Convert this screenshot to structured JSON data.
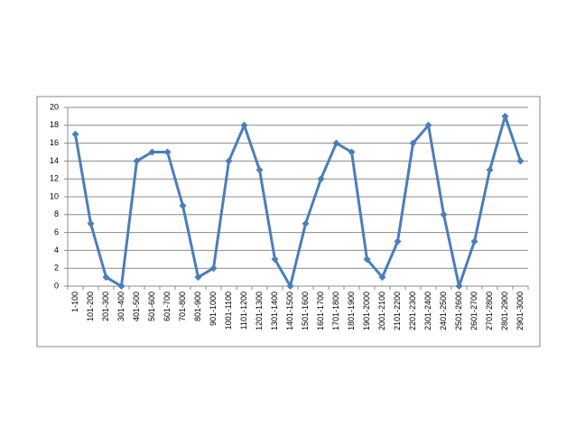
{
  "chart_data": {
    "type": "line",
    "categories": [
      "1-100",
      "101-200",
      "201-300",
      "301-400",
      "401-500",
      "501-600",
      "601-700",
      "701-800",
      "801-900",
      "901-1000",
      "1001-1100",
      "1101-1200",
      "1201-1300",
      "1301-1400",
      "1401-1500",
      "1501-1600",
      "1601-1700",
      "1701-1800",
      "1801-1900",
      "1901-2000",
      "2001-2100",
      "2101-2200",
      "2201-2300",
      "2301-2400",
      "2401-2500",
      "2501-2600",
      "2601-2700",
      "2701-2800",
      "2801-2900",
      "2901-3000"
    ],
    "values": [
      17,
      7,
      1,
      0,
      14,
      15,
      15,
      9,
      1,
      2,
      14,
      18,
      13,
      3,
      0,
      7,
      12,
      16,
      15,
      3,
      1,
      5,
      16,
      18,
      8,
      0,
      5,
      13,
      19,
      14
    ],
    "color": "#4a7ebb",
    "ylim": [
      0,
      20
    ],
    "yticks": [
      0,
      2,
      4,
      6,
      8,
      10,
      12,
      14,
      16,
      18,
      20
    ],
    "grid": true
  }
}
